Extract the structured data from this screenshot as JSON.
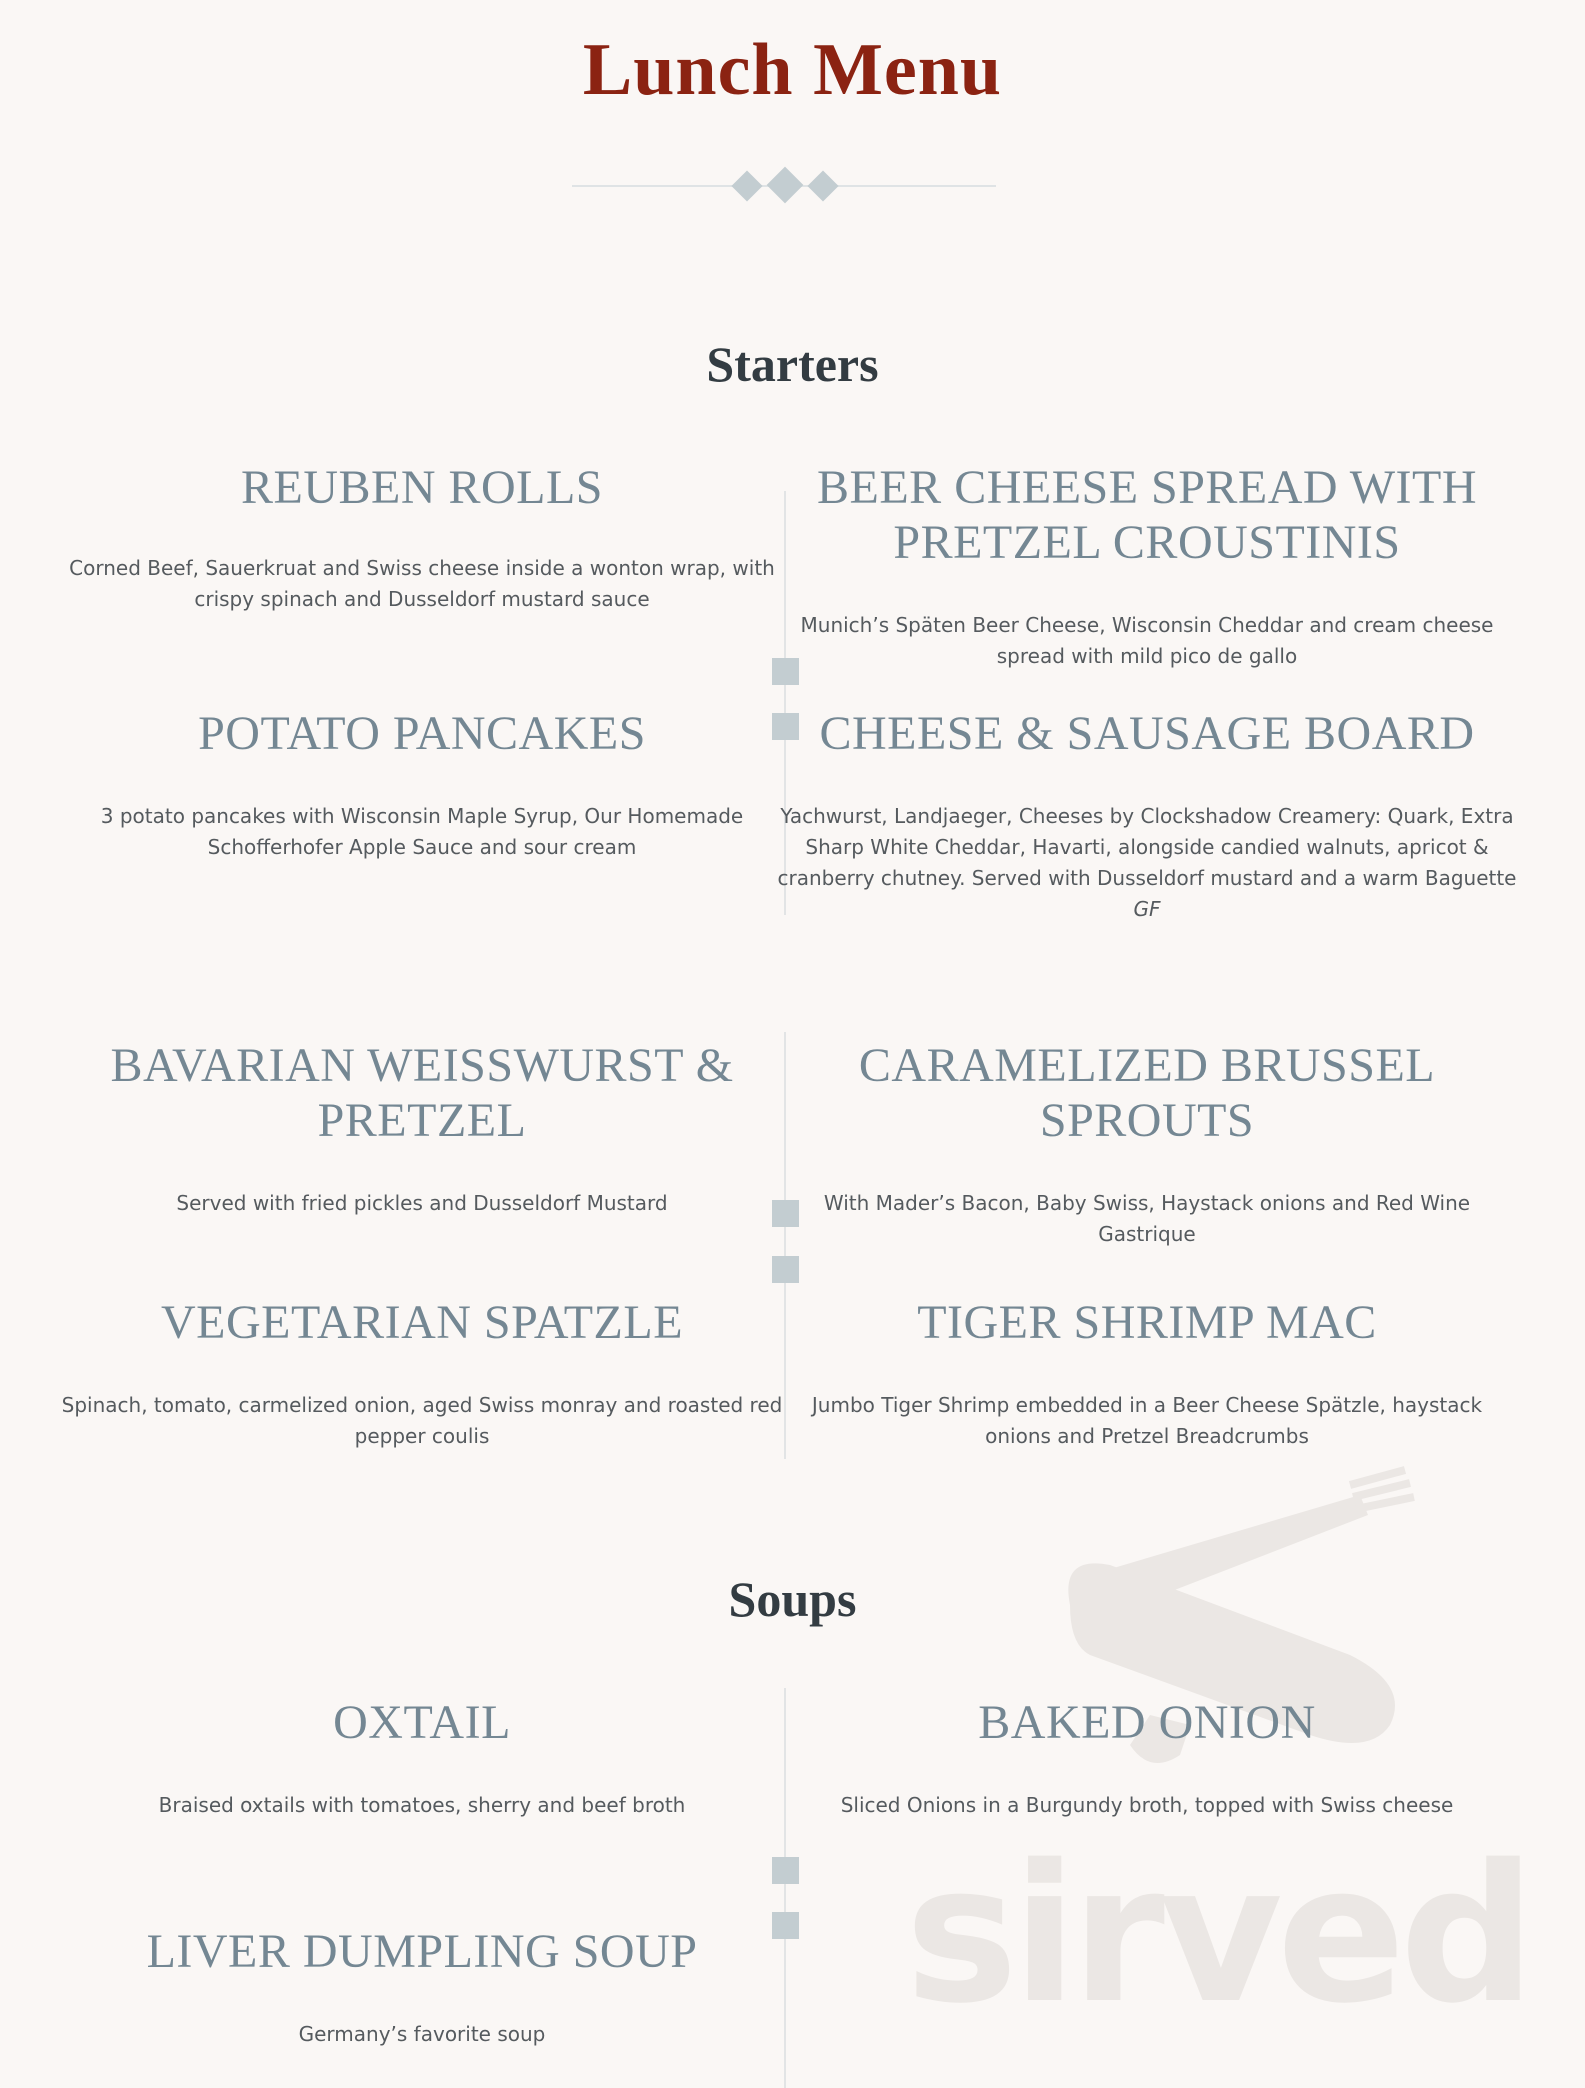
{
  "page_title": "Lunch Menu",
  "colors": {
    "title": "#8b2312",
    "heading": "#748793",
    "section": "#333c42",
    "accent": "#c3cdd1",
    "background": "#faf7f5"
  },
  "sections": [
    {
      "title": "Starters",
      "items": [
        {
          "name": "REUBEN ROLLS",
          "desc": "Corned Beef, Sauerkruat and Swiss cheese inside a wonton wrap, with crispy spinach and Dusseldorf mustard sauce"
        },
        {
          "name": "BEER CHEESE SPREAD WITH PRETZEL CROUSTINIS",
          "desc": "Munich’s Späten Beer Cheese, Wisconsin Cheddar and cream cheese spread with mild pico de gallo"
        },
        {
          "name": "POTATO PANCAKES",
          "desc": "3 potato pancakes with Wisconsin Maple Syrup, Our Homemade Schofferhofer Apple Sauce and sour cream"
        },
        {
          "name": "CHEESE & SAUSAGE BOARD",
          "desc": "Yachwurst, Landjaeger, Cheeses by Clockshadow Creamery: Quark, Extra Sharp White Cheddar, Havarti, alongside candied walnuts, apricot & cranberry chutney. Served with Dusseldorf mustard and a warm Baguette",
          "tag": "GF"
        },
        {
          "name": "BAVARIAN WEISSWURST & PRETZEL",
          "desc": "Served with fried pickles and Dusseldorf Mustard"
        },
        {
          "name": "CARAMELIZED BRUSSEL SPROUTS",
          "desc": "With Mader’s Bacon, Baby Swiss, Haystack onions and Red Wine Gastrique"
        },
        {
          "name": "VEGETARIAN SPATZLE",
          "desc": "Spinach, tomato, carmelized onion, aged Swiss monray and roasted red pepper coulis"
        },
        {
          "name": "TIGER SHRIMP MAC",
          "desc": "Jumbo Tiger Shrimp embedded in a Beer Cheese Spätzle, haystack onions and Pretzel Breadcrumbs"
        }
      ]
    },
    {
      "title": "Soups",
      "items": [
        {
          "name": "OXTAIL",
          "desc": "Braised oxtails with tomatoes, sherry and beef broth"
        },
        {
          "name": "BAKED ONION",
          "desc": "Sliced Onions in a Burgundy broth, topped with Swiss cheese"
        },
        {
          "name": "LIVER DUMPLING SOUP",
          "desc": "Germany’s favorite soup"
        }
      ]
    }
  ],
  "watermark": {
    "text": "sirved",
    "icon": "fork-knife-logo-icon"
  }
}
